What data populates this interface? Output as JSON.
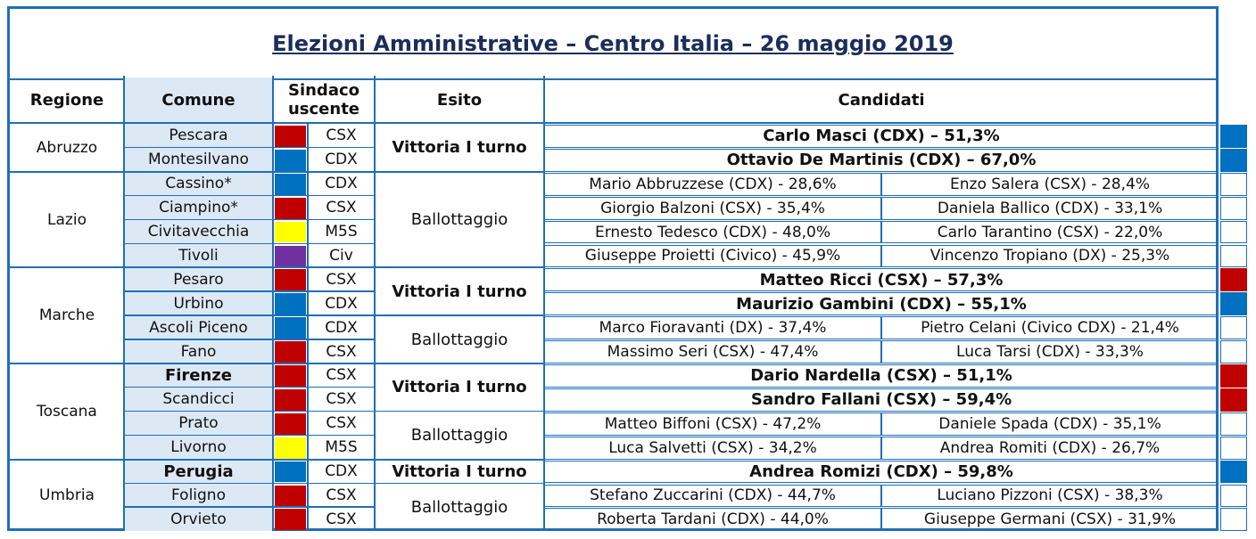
{
  "title": "Elezioni Amministrative – Centro Italia – 26 maggio 2019",
  "headers": {
    "regione": "Regione",
    "comune": "Comune",
    "sindaco_line1": "Sindaco",
    "sindaco_line2": "uscente",
    "esito": "Esito",
    "candidati": "Candidati"
  },
  "colors": {
    "CSX": "#c00000",
    "CDX": "#0070c0",
    "M5S": "#ffff00",
    "Civ": "#7030a0",
    "border": "#1f6fb8",
    "comune_bg": "#dde8f5",
    "title": "#1b2d5c"
  },
  "regions": [
    {
      "name": "Abruzzo"
    },
    {
      "name": "Lazio"
    },
    {
      "name": "Marche"
    },
    {
      "name": "Toscana"
    },
    {
      "name": "Umbria"
    }
  ],
  "esiti": [
    {
      "label": "Vittoria I turno"
    },
    {
      "label": "Ballottaggio"
    },
    {
      "label": "Vittoria I turno"
    },
    {
      "label": "Ballottaggio"
    },
    {
      "label": "Vittoria I turno"
    },
    {
      "label": "Ballottaggio"
    },
    {
      "label": "Vittoria I turno"
    },
    {
      "label": "Ballottaggio"
    }
  ],
  "rows": [
    {
      "comune": "Pescara",
      "comune_bold": false,
      "uscente": "CSX",
      "winner": "Carlo Masci (CDX) – 51,3%",
      "c1": "",
      "c2": "",
      "result_color": "CDX"
    },
    {
      "comune": "Montesilvano",
      "comune_bold": false,
      "uscente": "CDX",
      "winner": "Ottavio De Martinis (CDX) – 67,0%",
      "c1": "",
      "c2": "",
      "result_color": "CDX"
    },
    {
      "comune": "Cassino*",
      "comune_bold": false,
      "uscente": "CDX",
      "winner": "",
      "c1": "Mario Abbruzzese (CDX) - 28,6%",
      "c2": "Enzo Salera (CSX) - 28,4%",
      "result_color": ""
    },
    {
      "comune": "Ciampino*",
      "comune_bold": false,
      "uscente": "CSX",
      "winner": "",
      "c1": "Giorgio Balzoni (CSX) - 35,4%",
      "c2": "Daniela Ballico (CDX) - 33,1%",
      "result_color": ""
    },
    {
      "comune": "Civitavecchia",
      "comune_bold": false,
      "uscente": "M5S",
      "winner": "",
      "c1": "Ernesto Tedesco (CDX) - 48,0%",
      "c2": "Carlo Tarantino (CSX) - 22,0%",
      "result_color": ""
    },
    {
      "comune": "Tivoli",
      "comune_bold": false,
      "uscente": "Civ",
      "winner": "",
      "c1": "Giuseppe Proietti (Civico) - 45,9%",
      "c2": "Vincenzo Tropiano (DX) - 25,3%",
      "result_color": ""
    },
    {
      "comune": "Pesaro",
      "comune_bold": false,
      "uscente": "CSX",
      "winner": "Matteo Ricci (CSX) – 57,3%",
      "c1": "",
      "c2": "",
      "result_color": "CSX"
    },
    {
      "comune": "Urbino",
      "comune_bold": false,
      "uscente": "CDX",
      "winner": "Maurizio Gambini (CDX) – 55,1%",
      "c1": "",
      "c2": "",
      "result_color": "CDX"
    },
    {
      "comune": "Ascoli Piceno",
      "comune_bold": false,
      "uscente": "CDX",
      "winner": "",
      "c1": "Marco Fioravanti (DX) - 37,4%",
      "c2": "Pietro Celani (Civico CDX) - 21,4%",
      "result_color": ""
    },
    {
      "comune": "Fano",
      "comune_bold": false,
      "uscente": "CSX",
      "winner": "",
      "c1": "Massimo Seri (CSX) - 47,4%",
      "c2": "Luca Tarsi (CDX) - 33,3%",
      "result_color": ""
    },
    {
      "comune": "Firenze",
      "comune_bold": true,
      "uscente": "CSX",
      "winner": "Dario Nardella (CSX) – 51,1%",
      "c1": "",
      "c2": "",
      "result_color": "CSX"
    },
    {
      "comune": "Scandicci",
      "comune_bold": false,
      "uscente": "CSX",
      "winner": "Sandro Fallani (CSX) – 59,4%",
      "c1": "",
      "c2": "",
      "result_color": "CSX"
    },
    {
      "comune": "Prato",
      "comune_bold": false,
      "uscente": "CSX",
      "winner": "",
      "c1": "Matteo Biffoni (CSX) - 47,2%",
      "c2": "Daniele Spada (CDX) - 35,1%",
      "result_color": ""
    },
    {
      "comune": "Livorno",
      "comune_bold": false,
      "uscente": "M5S",
      "winner": "",
      "c1": "Luca Salvetti (CSX) - 34,2%",
      "c2": "Andrea Romiti (CDX) - 26,7%",
      "result_color": ""
    },
    {
      "comune": "Perugia",
      "comune_bold": true,
      "uscente": "CDX",
      "winner": "Andrea Romizi (CDX) – 59,8%",
      "c1": "",
      "c2": "",
      "result_color": "CDX"
    },
    {
      "comune": "Foligno",
      "comune_bold": false,
      "uscente": "CSX",
      "winner": "",
      "c1": "Stefano Zuccarini (CDX) - 44,7%",
      "c2": "Luciano Pizzoni (CSX) - 38,3%",
      "result_color": ""
    },
    {
      "comune": "Orvieto",
      "comune_bold": false,
      "uscente": "CSX",
      "winner": "",
      "c1": "Roberta Tardani (CDX) - 44,0%",
      "c2": "Giuseppe Germani (CSX) - 31,9%",
      "result_color": ""
    }
  ]
}
